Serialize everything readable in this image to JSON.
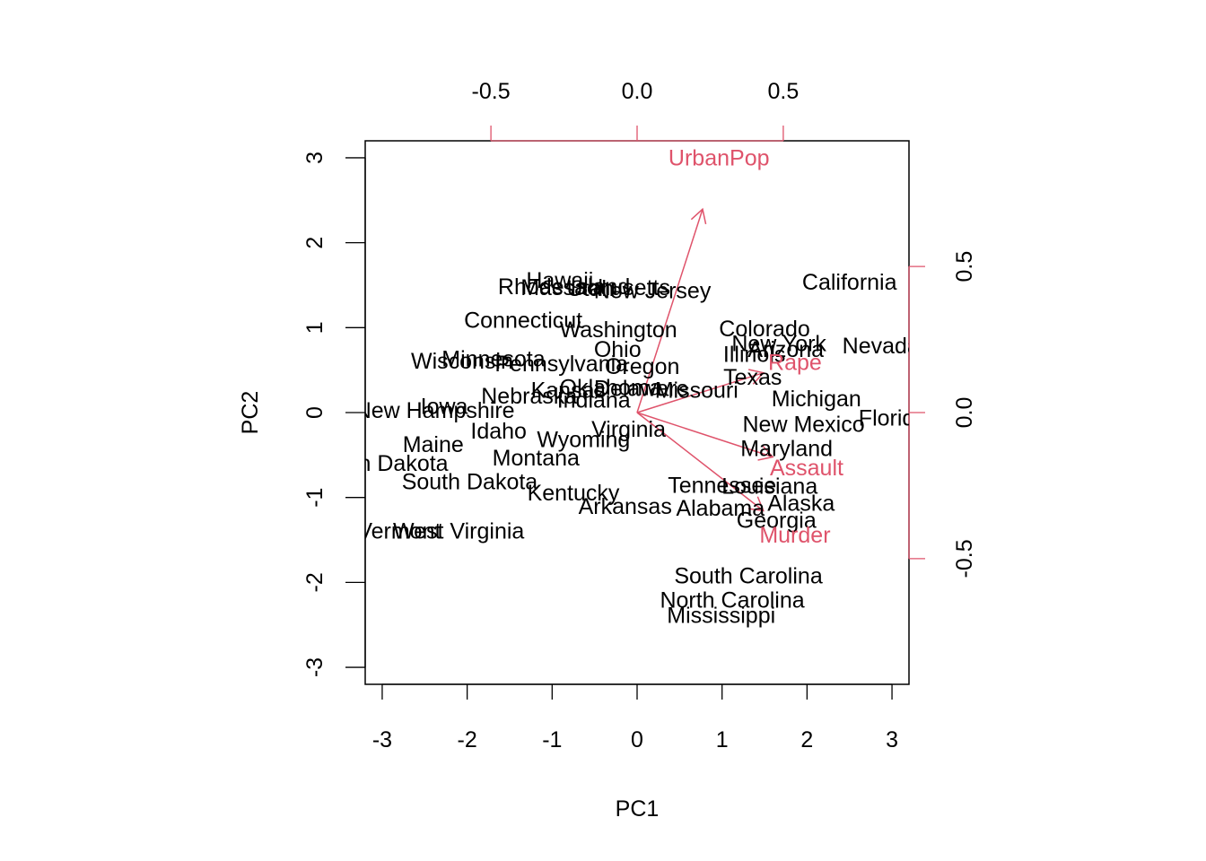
{
  "chart_data": {
    "type": "scatter",
    "subtype": "biplot",
    "xlabel": "PC1",
    "ylabel": "PC2",
    "xlim": [
      -3.2,
      3.2
    ],
    "ylim": [
      -3.2,
      3.2
    ],
    "x_ticks": [
      -3,
      -2,
      -1,
      0,
      1,
      2,
      3
    ],
    "y_ticks": [
      -3,
      -2,
      -1,
      0,
      1,
      2,
      3
    ],
    "loading_xlim": [
      -0.93,
      0.93
    ],
    "loading_ylim": [
      -0.93,
      0.93
    ],
    "top_ticks": [
      {
        "value": -0.5,
        "label": "-0.5"
      },
      {
        "value": 0.0,
        "label": "0.0"
      },
      {
        "value": 0.5,
        "label": "0.5"
      }
    ],
    "right_ticks": [
      {
        "value": 0.5,
        "label": "0.5"
      },
      {
        "value": 0.0,
        "label": "0.0"
      },
      {
        "value": -0.5,
        "label": "-0.5"
      }
    ],
    "colors": {
      "points": "#000000",
      "loadings": "#DF536B",
      "frame": "#000000"
    },
    "grid": false,
    "observations": [
      {
        "name": "Alabama",
        "x": 0.98,
        "y": -1.13
      },
      {
        "name": "Alaska",
        "x": 1.93,
        "y": -1.07
      },
      {
        "name": "Arizona",
        "x": 1.75,
        "y": 0.74
      },
      {
        "name": "Arkansas",
        "x": -0.14,
        "y": -1.11
      },
      {
        "name": "California",
        "x": 2.5,
        "y": 1.53
      },
      {
        "name": "Colorado",
        "x": 1.5,
        "y": 0.98
      },
      {
        "name": "Connecticut",
        "x": -1.34,
        "y": 1.08
      },
      {
        "name": "Delaware",
        "x": 0.05,
        "y": 0.28
      },
      {
        "name": "Florida",
        "x": 3.01,
        "y": -0.07
      },
      {
        "name": "Georgia",
        "x": 1.64,
        "y": -1.27
      },
      {
        "name": "Hawaii",
        "x": -0.91,
        "y": 1.55
      },
      {
        "name": "Idaho",
        "x": -1.63,
        "y": -0.22
      },
      {
        "name": "Illinois",
        "x": 1.38,
        "y": 0.68
      },
      {
        "name": "Indiana",
        "x": -0.51,
        "y": 0.14
      },
      {
        "name": "Iowa",
        "x": -2.27,
        "y": 0.07
      },
      {
        "name": "Kansas",
        "x": -0.81,
        "y": 0.26
      },
      {
        "name": "Kentucky",
        "x": -0.75,
        "y": -0.95
      },
      {
        "name": "Louisiana",
        "x": 1.56,
        "y": -0.87
      },
      {
        "name": "Maine",
        "x": -2.4,
        "y": -0.38
      },
      {
        "name": "Maryland",
        "x": 1.76,
        "y": -0.43
      },
      {
        "name": "Massachusetts",
        "x": -0.49,
        "y": 1.47
      },
      {
        "name": "Michigan",
        "x": 2.11,
        "y": 0.16
      },
      {
        "name": "Minnesota",
        "x": -1.69,
        "y": 0.63
      },
      {
        "name": "Mississippi",
        "x": 0.99,
        "y": -2.39
      },
      {
        "name": "Missouri",
        "x": 0.7,
        "y": 0.26
      },
      {
        "name": "Montana",
        "x": -1.19,
        "y": -0.54
      },
      {
        "name": "Nebraska",
        "x": -1.27,
        "y": 0.19
      },
      {
        "name": "Nevada",
        "x": 2.87,
        "y": 0.78
      },
      {
        "name": "New Hampshire",
        "x": -2.38,
        "y": 0.02
      },
      {
        "name": "New Jersey",
        "x": 0.18,
        "y": 1.43
      },
      {
        "name": "New Mexico",
        "x": 1.96,
        "y": -0.14
      },
      {
        "name": "New York",
        "x": 1.67,
        "y": 0.81
      },
      {
        "name": "North Carolina",
        "x": 1.12,
        "y": -2.21
      },
      {
        "name": "North Dakota",
        "x": -3.0,
        "y": -0.6
      },
      {
        "name": "Ohio",
        "x": -0.23,
        "y": 0.74
      },
      {
        "name": "Oklahoma",
        "x": -0.31,
        "y": 0.29
      },
      {
        "name": "Oregon",
        "x": 0.06,
        "y": 0.54
      },
      {
        "name": "Pennsylvania",
        "x": -0.89,
        "y": 0.57
      },
      {
        "name": "Rhode Island",
        "x": -0.86,
        "y": 1.48
      },
      {
        "name": "South Carolina",
        "x": 1.31,
        "y": -1.93
      },
      {
        "name": "South Dakota",
        "x": -1.97,
        "y": -0.82
      },
      {
        "name": "Tennessee",
        "x": 1.0,
        "y": -0.86
      },
      {
        "name": "Texas",
        "x": 1.36,
        "y": 0.41
      },
      {
        "name": "Utah",
        "x": -0.55,
        "y": 1.46
      },
      {
        "name": "Vermont",
        "x": -2.8,
        "y": -1.4
      },
      {
        "name": "Virginia",
        "x": -0.1,
        "y": -0.2
      },
      {
        "name": "Washington",
        "x": -0.22,
        "y": 0.97
      },
      {
        "name": "West Virginia",
        "x": -2.1,
        "y": -1.4
      },
      {
        "name": "Wisconsin",
        "x": -2.06,
        "y": 0.6
      },
      {
        "name": "Wyoming",
        "x": -0.63,
        "y": -0.32
      }
    ],
    "loadings": [
      {
        "name": "Murder",
        "x": 0.54,
        "y": -0.42
      },
      {
        "name": "Assault",
        "x": 0.58,
        "y": -0.19
      },
      {
        "name": "UrbanPop",
        "x": 0.28,
        "y": 0.87
      },
      {
        "name": "Rape",
        "x": 0.54,
        "y": 0.17
      }
    ]
  }
}
